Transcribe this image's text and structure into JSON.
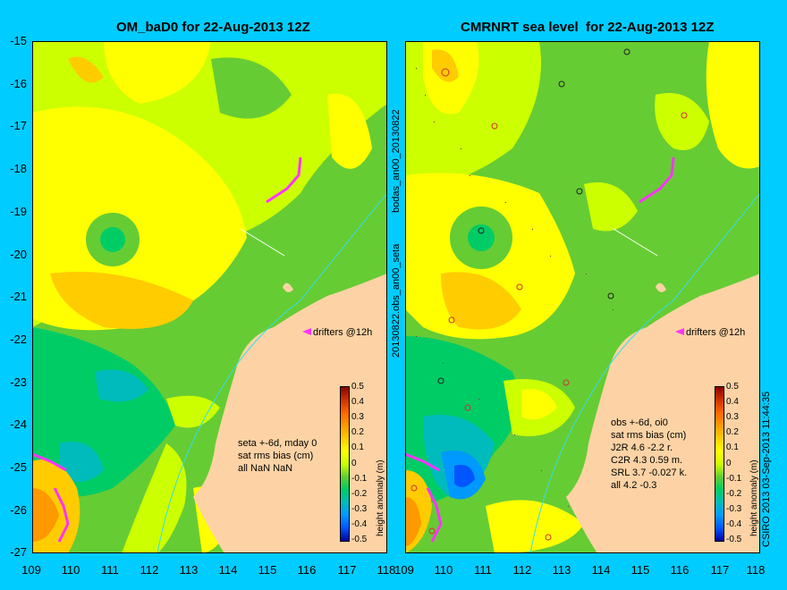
{
  "titles": {
    "left": "OM_baD0 for 22-Aug-2013 12Z",
    "right": "CMRNRT sea level  for 22-Aug-2013 12Z"
  },
  "axes": {
    "y_ticks": [
      "-15",
      "-16",
      "-17",
      "-18",
      "-19",
      "-20",
      "-21",
      "-22",
      "-23",
      "-24",
      "-25",
      "-26",
      "-27"
    ],
    "x_ticks": [
      "109",
      "110",
      "111",
      "112",
      "113",
      "114",
      "115",
      "116",
      "117",
      "118"
    ]
  },
  "colorbar": {
    "ticks": [
      "0.5",
      "0.4",
      "0.3",
      "0.2",
      "0.1",
      "0",
      "-0.1",
      "-0.2",
      "-0.3",
      "-0.4",
      "-0.5"
    ],
    "label": "height anomaly (m)",
    "colors": [
      "#8b0000",
      "#cc3300",
      "#ff6600",
      "#ff9900",
      "#ffcc00",
      "#ffff00",
      "#ccff00",
      "#66cc33",
      "#00cc66",
      "#00bbbb",
      "#0099ff",
      "#0055ff",
      "#000099"
    ]
  },
  "annotations": {
    "drifters": "drifters @12h",
    "left_stats": [
      "seta +-6d, mday 0",
      "sat rms bias (cm)",
      "all NaN NaN"
    ],
    "right_stats": [
      "obs +-6d, oi0",
      "sat rms bias (cm)",
      "J2R   4.6  -2.2  r.",
      "C2R   4.3  0.59  m.",
      "SRL   3.7  -0.027 k.",
      "all   4.2  -0.3"
    ]
  },
  "side_labels": {
    "middle_top": "bodas_an00_20130822",
    "middle_bottom": "20130822.obs_an00_seta",
    "right_edge": "CSIRO 2013   03-Sep-2013 11:44:35"
  },
  "colors": {
    "background": "#00ccff",
    "land": "#fdd3a5",
    "drifter": "#ff33ff"
  }
}
